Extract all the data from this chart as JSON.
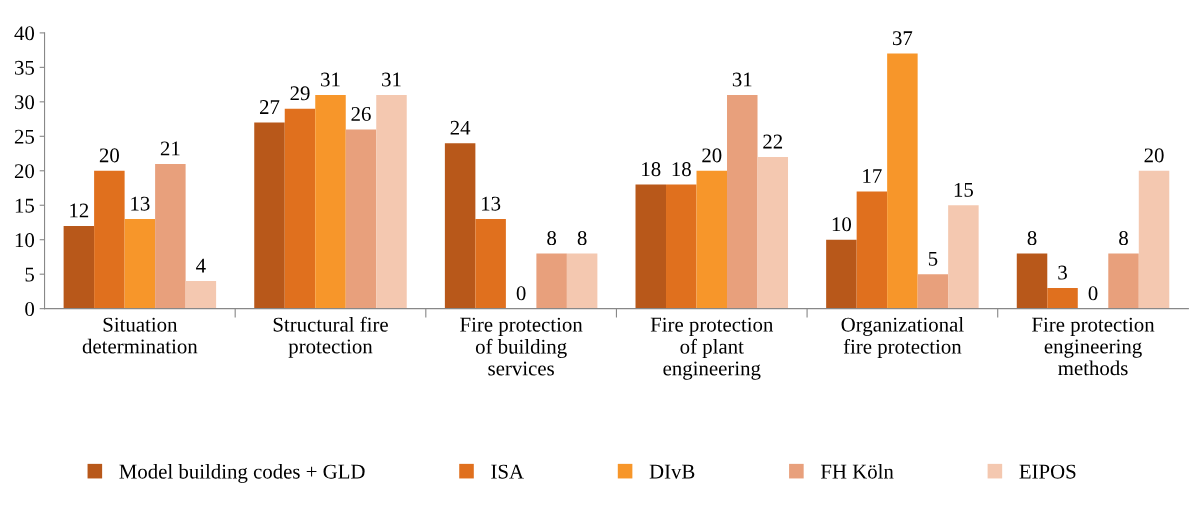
{
  "chart_data": {
    "type": "bar",
    "categories": [
      "Situation determination",
      "Structural fire protection",
      "Fire protection of building services",
      "Fire protection of plant engineering",
      "Organizational fire protection",
      "Fire protection engineering methods"
    ],
    "series": [
      {
        "name": "Model building codes + GLD",
        "color": "#b8581a",
        "values": [
          12,
          27,
          24,
          18,
          10,
          8
        ]
      },
      {
        "name": "ISA",
        "color": "#e0701e",
        "values": [
          20,
          29,
          13,
          18,
          17,
          3
        ]
      },
      {
        "name": "DIvB",
        "color": "#f7962a",
        "values": [
          13,
          31,
          0,
          20,
          37,
          0
        ]
      },
      {
        "name": "FH Köln",
        "color": "#e8a07c",
        "values": [
          21,
          26,
          8,
          31,
          5,
          8
        ]
      },
      {
        "name": "EIPOS",
        "color": "#f4c8b0",
        "values": [
          4,
          31,
          8,
          22,
          15,
          20
        ]
      }
    ],
    "ylim": [
      0,
      40
    ],
    "yticks": [
      0,
      5,
      10,
      15,
      20,
      25,
      30,
      35,
      40
    ],
    "data_labels": true,
    "legend": "bottom",
    "grid": false
  }
}
